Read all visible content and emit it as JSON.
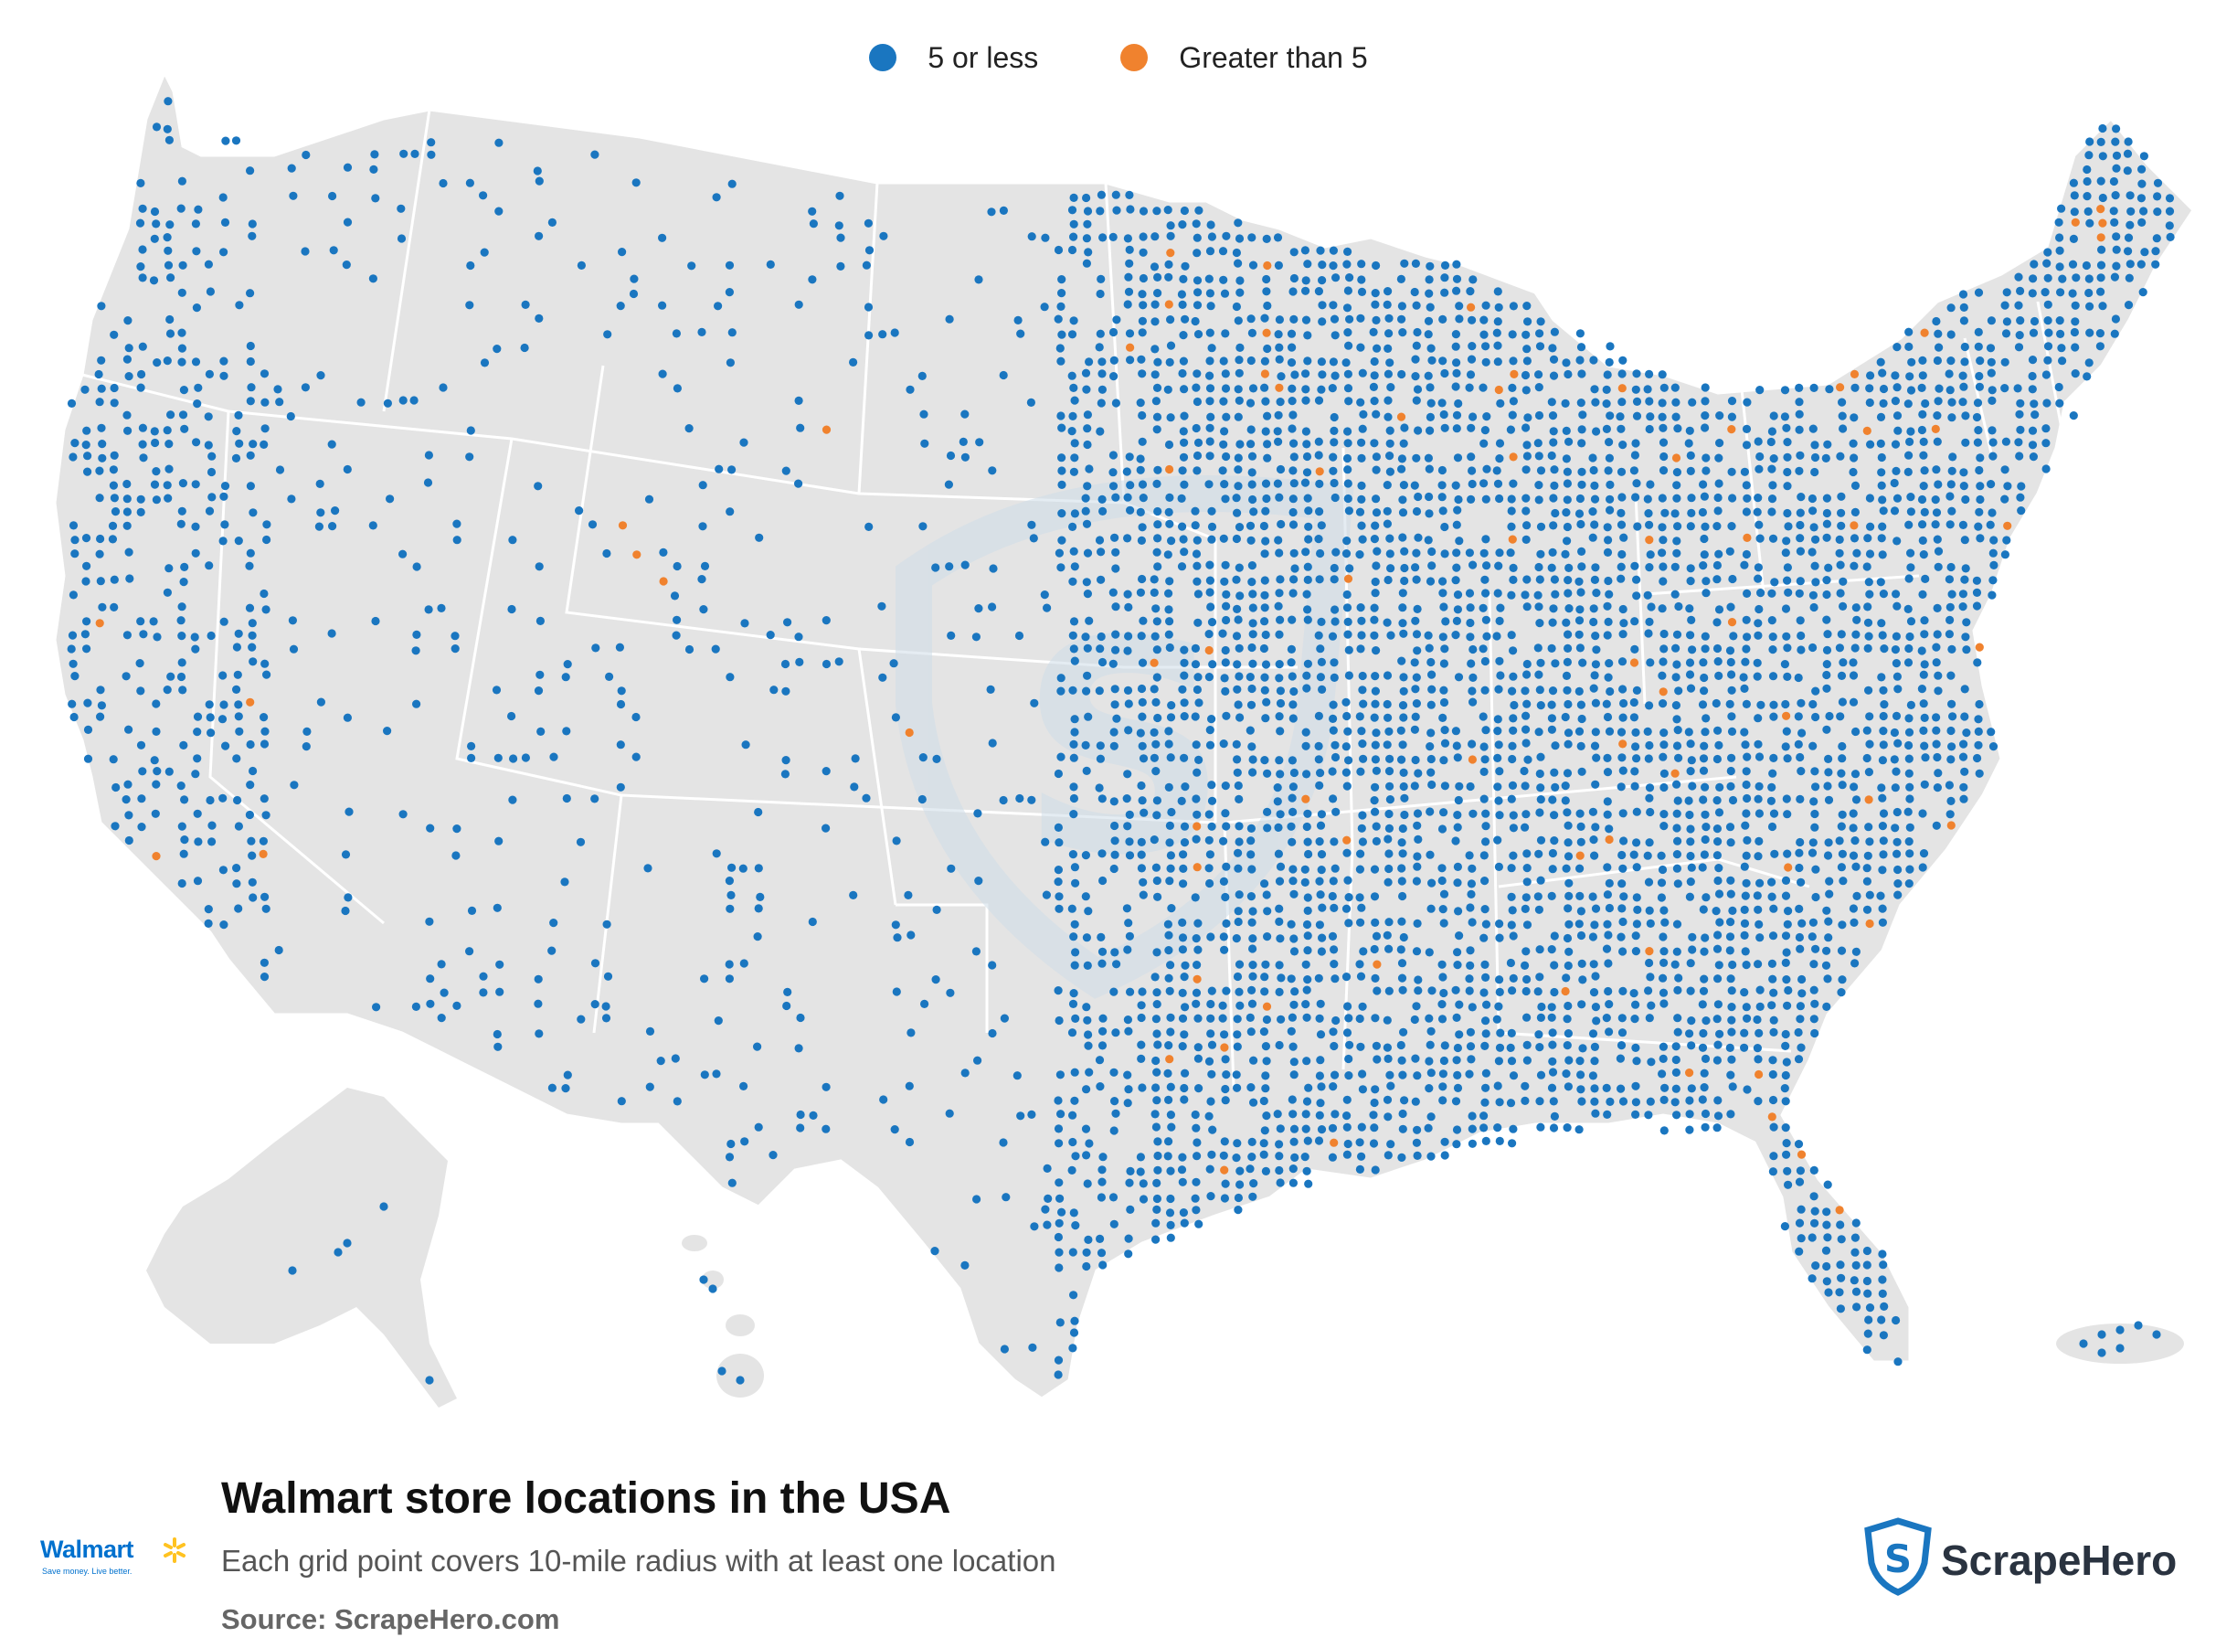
{
  "legend": [
    {
      "label": "5 or less",
      "color": "#1a76c0"
    },
    {
      "label": "Greater than 5",
      "color": "#f0822e"
    }
  ],
  "title": "Walmart store locations in the USA",
  "subtitle": "Each grid point covers 10-mile radius with at least one location",
  "source": "Source: ScrapeHero.com",
  "brand_logo": {
    "text": "Walmart",
    "tagline": "Save money. Live better.",
    "color": "#0071ce",
    "spark_color": "#ffc220"
  },
  "publisher_logo": {
    "text": "ScrapeHero",
    "color": "#2a3340",
    "accent": "#1a76c0"
  },
  "map_colors": {
    "land": "#e4e4e4",
    "border": "#ffffff",
    "watermark": "#cfdde8"
  }
}
